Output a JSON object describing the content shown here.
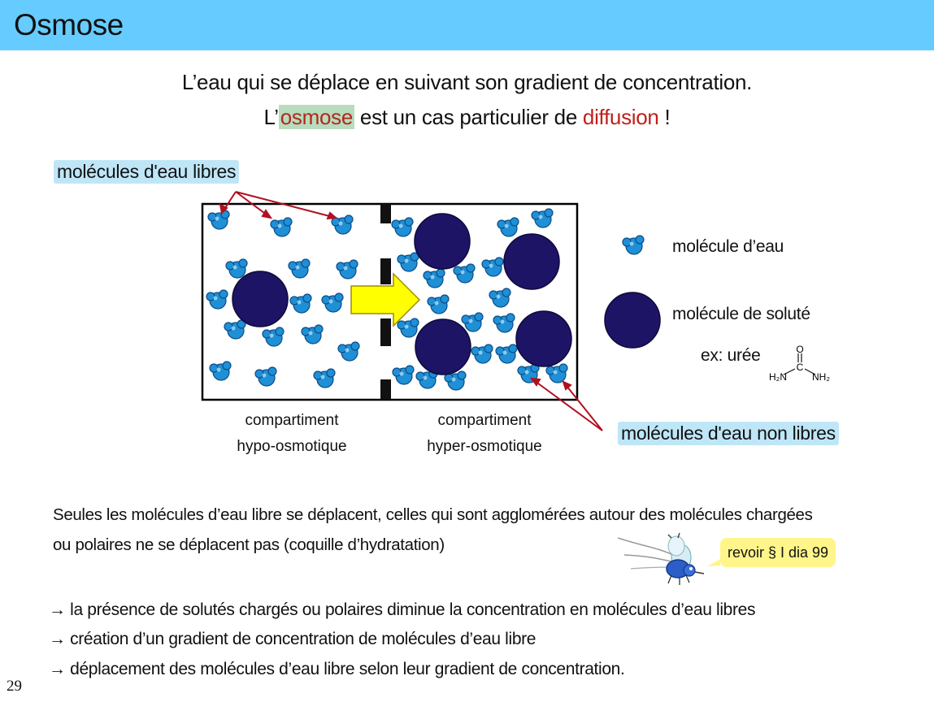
{
  "title": "Osmose",
  "intro": {
    "line1": "L’eau qui se déplace en suivant son gradient de concentration.",
    "line2_prefix": "L’",
    "line2_osmose": "osmose",
    "line2_middle": " est un cas particulier de ",
    "line2_diffusion": "diffusion",
    "line2_suffix": " !"
  },
  "diagram": {
    "label_free": "molécules d'eau libres",
    "label_bound": "molécules d'eau non libres",
    "caption_left": [
      "compartiment",
      "hypo-osmotique"
    ],
    "caption_right": [
      "compartiment",
      "hyper-osmotique"
    ],
    "legend_water": "molécule d’eau",
    "legend_solute": "molécule de soluté",
    "legend_example": "ex: urée",
    "urea": {
      "o": "O",
      "c": "C",
      "left": "H₂N",
      "right": "NH₂"
    }
  },
  "paragraph": {
    "line1": "Seules les molécules d’eau libre se déplacent, celles qui sont agglomérées autour des molécules chargées",
    "line2": "ou polaires ne se déplacent pas (coquille d’hydratation)"
  },
  "note": "revoir § I dia 99",
  "bullets": [
    "→ la présence de solutés chargés ou polaires diminue la concentration en molécules d’eau libres",
    "→ création d’un gradient de concentration de molécules d’eau libre",
    "→ déplacement des molécules d’eau libre selon leur gradient de concentration."
  ],
  "page_number": "29",
  "colors": {
    "title_bar": "#66ccff",
    "water": "#1f8fd6",
    "solute": "#1e1466",
    "arrow": "#ffff00",
    "pointer": "#b01020",
    "highlight_blue": "#bfe6f7",
    "highlight_green": "#b8dcbe",
    "note": "#fff58a"
  }
}
